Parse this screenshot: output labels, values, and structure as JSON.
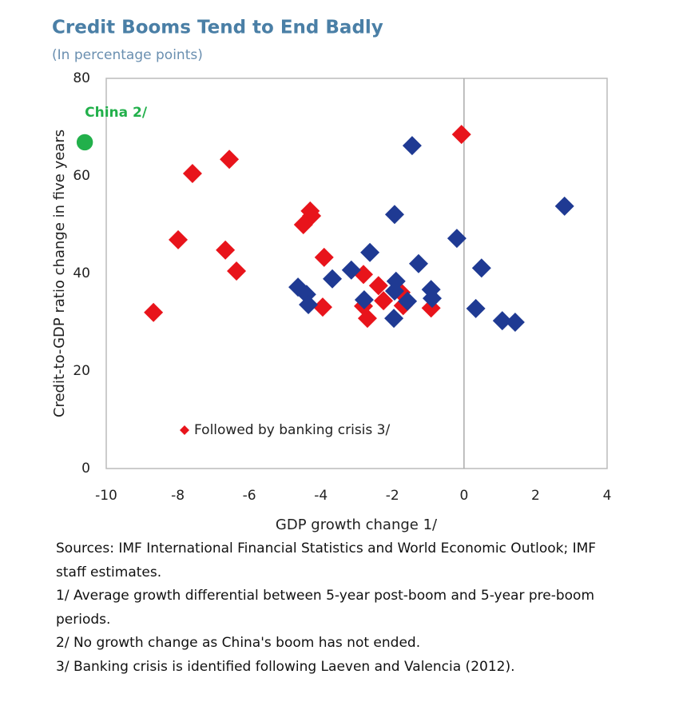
{
  "chart_data": {
    "type": "scatter",
    "title": "Credit Booms Tend to End Badly",
    "subtitle": "(In percentage points)",
    "x_label": "GDP growth change 1/",
    "y_label": "Credit-to-GDP ratio change in five years",
    "xlim": [
      -10,
      4
    ],
    "xticks": [
      -10,
      -8,
      -6,
      -4,
      -2,
      0,
      2,
      4
    ],
    "ylim": [
      0,
      80
    ],
    "yticks": [
      0,
      20,
      40,
      60,
      80
    ],
    "zero_line_x": true,
    "legend": "lower left",
    "series": [
      {
        "name": "Followed by banking crisis 3/",
        "color": "#e8141b",
        "marker": "diamond",
        "x": [
          -8.68,
          -7.99,
          -7.59,
          -6.56,
          -6.67,
          -6.36,
          -4.26,
          -4.3,
          -4.49,
          -3.91,
          -3.95,
          -2.81,
          -2.81,
          -2.7,
          -2.39,
          -2.25,
          -1.76,
          -1.7,
          -0.92,
          -0.07
        ],
        "values": [
          32.0,
          46.9,
          60.5,
          63.4,
          44.8,
          40.5,
          51.8,
          52.8,
          50.0,
          43.3,
          33.1,
          39.8,
          33.3,
          30.8,
          37.5,
          34.4,
          36.1,
          33.4,
          32.9,
          68.5
        ]
      },
      {
        "color": "#1f3a93",
        "marker": "diamond",
        "x": [
          -1.45,
          2.81,
          -1.94,
          -0.2,
          0.49,
          -1.27,
          -2.63,
          -3.15,
          -3.68,
          -4.64,
          -4.4,
          -4.35,
          -2.79,
          -1.9,
          -1.94,
          -1.96,
          -1.58,
          -0.92,
          -0.89,
          0.33,
          1.07,
          1.43
        ],
        "values": [
          66.2,
          53.8,
          52.1,
          47.2,
          41.1,
          42.0,
          44.3,
          40.7,
          38.9,
          37.2,
          35.7,
          33.6,
          34.6,
          38.4,
          36.4,
          30.8,
          34.3,
          36.7,
          34.9,
          32.8,
          30.3,
          30.0
        ]
      },
      {
        "name": "China 2/",
        "color": "#22b04b",
        "marker": "circle",
        "annotate": true,
        "x": [
          -10.6
        ],
        "values": [
          66.9
        ]
      }
    ]
  },
  "notes": [
    "Sources: IMF International Financial Statistics and World Economic Outlook; IMF staff estimates.",
    "1/ Average growth differential between 5-year post-boom and 5-year pre-boom periods.",
    "2/ No growth change as China's boom has not ended.",
    "3/ Banking crisis is identified following Laeven and Valencia (2012)."
  ]
}
